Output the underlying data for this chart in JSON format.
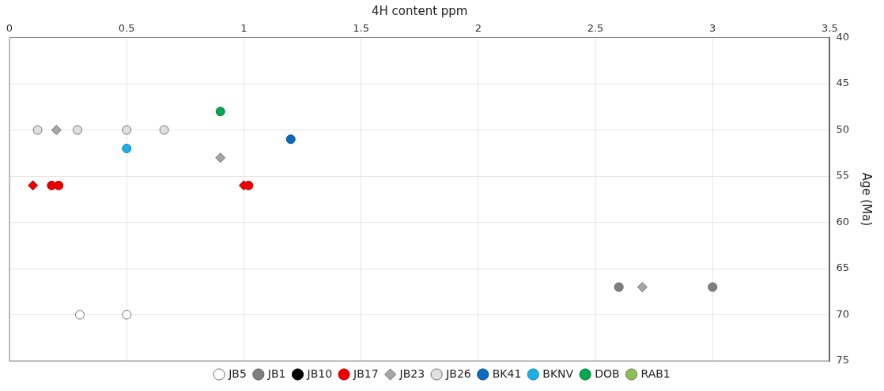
{
  "chart_data": {
    "type": "scatter",
    "xlabel": "4H content ppm",
    "ylabel": "Age (Ma)",
    "xlim": [
      0,
      3.5
    ],
    "xticks": [
      0,
      0.5,
      1,
      1.5,
      2,
      2.5,
      3,
      3.5
    ],
    "ylim": [
      75,
      40
    ],
    "yticks": [
      40,
      45,
      50,
      55,
      60,
      65,
      70,
      75
    ],
    "grid": true,
    "legend": "bottom",
    "marker": "circle",
    "series": [
      {
        "name": "JB5",
        "color": "#ffffff",
        "x": [
          0.3,
          0.5
        ],
        "values": [
          70,
          70
        ]
      },
      {
        "name": "JB1",
        "color": "#7f7f7f",
        "x": [
          2.6,
          3.0
        ],
        "values": [
          67,
          67
        ]
      },
      {
        "name": "JB10",
        "color": "#000000"
      },
      {
        "name": "JB17",
        "color": "#ee0000",
        "x": [
          0.18,
          0.21,
          1.02
        ],
        "values": [
          56,
          56,
          56
        ]
      },
      {
        "name": "JB23",
        "color": "#a6a6a6",
        "marker": "diamond",
        "x": [
          0.2,
          0.9,
          2.7
        ],
        "values": [
          50,
          53,
          67
        ]
      },
      {
        "name": "JB26",
        "color": "#e0e0e0",
        "x": [
          0.12,
          0.29,
          0.5,
          0.66
        ],
        "values": [
          50,
          50,
          50,
          50
        ]
      },
      {
        "name": "BK41",
        "color": "#0b6bbf",
        "x": [
          1.2
        ],
        "values": [
          51
        ]
      },
      {
        "name": "BKNV",
        "color": "#1cb0ea",
        "x": [
          0.5
        ],
        "values": [
          52
        ]
      },
      {
        "name": "DOB",
        "color": "#00a650",
        "x": [
          0.9
        ],
        "values": [
          48
        ]
      },
      {
        "name": "RAB1",
        "color": "#8cc152"
      },
      {
        "color": "#ee0000",
        "marker": "diamond",
        "x": [
          0.1,
          1.0
        ],
        "values": [
          56,
          56
        ]
      }
    ]
  }
}
